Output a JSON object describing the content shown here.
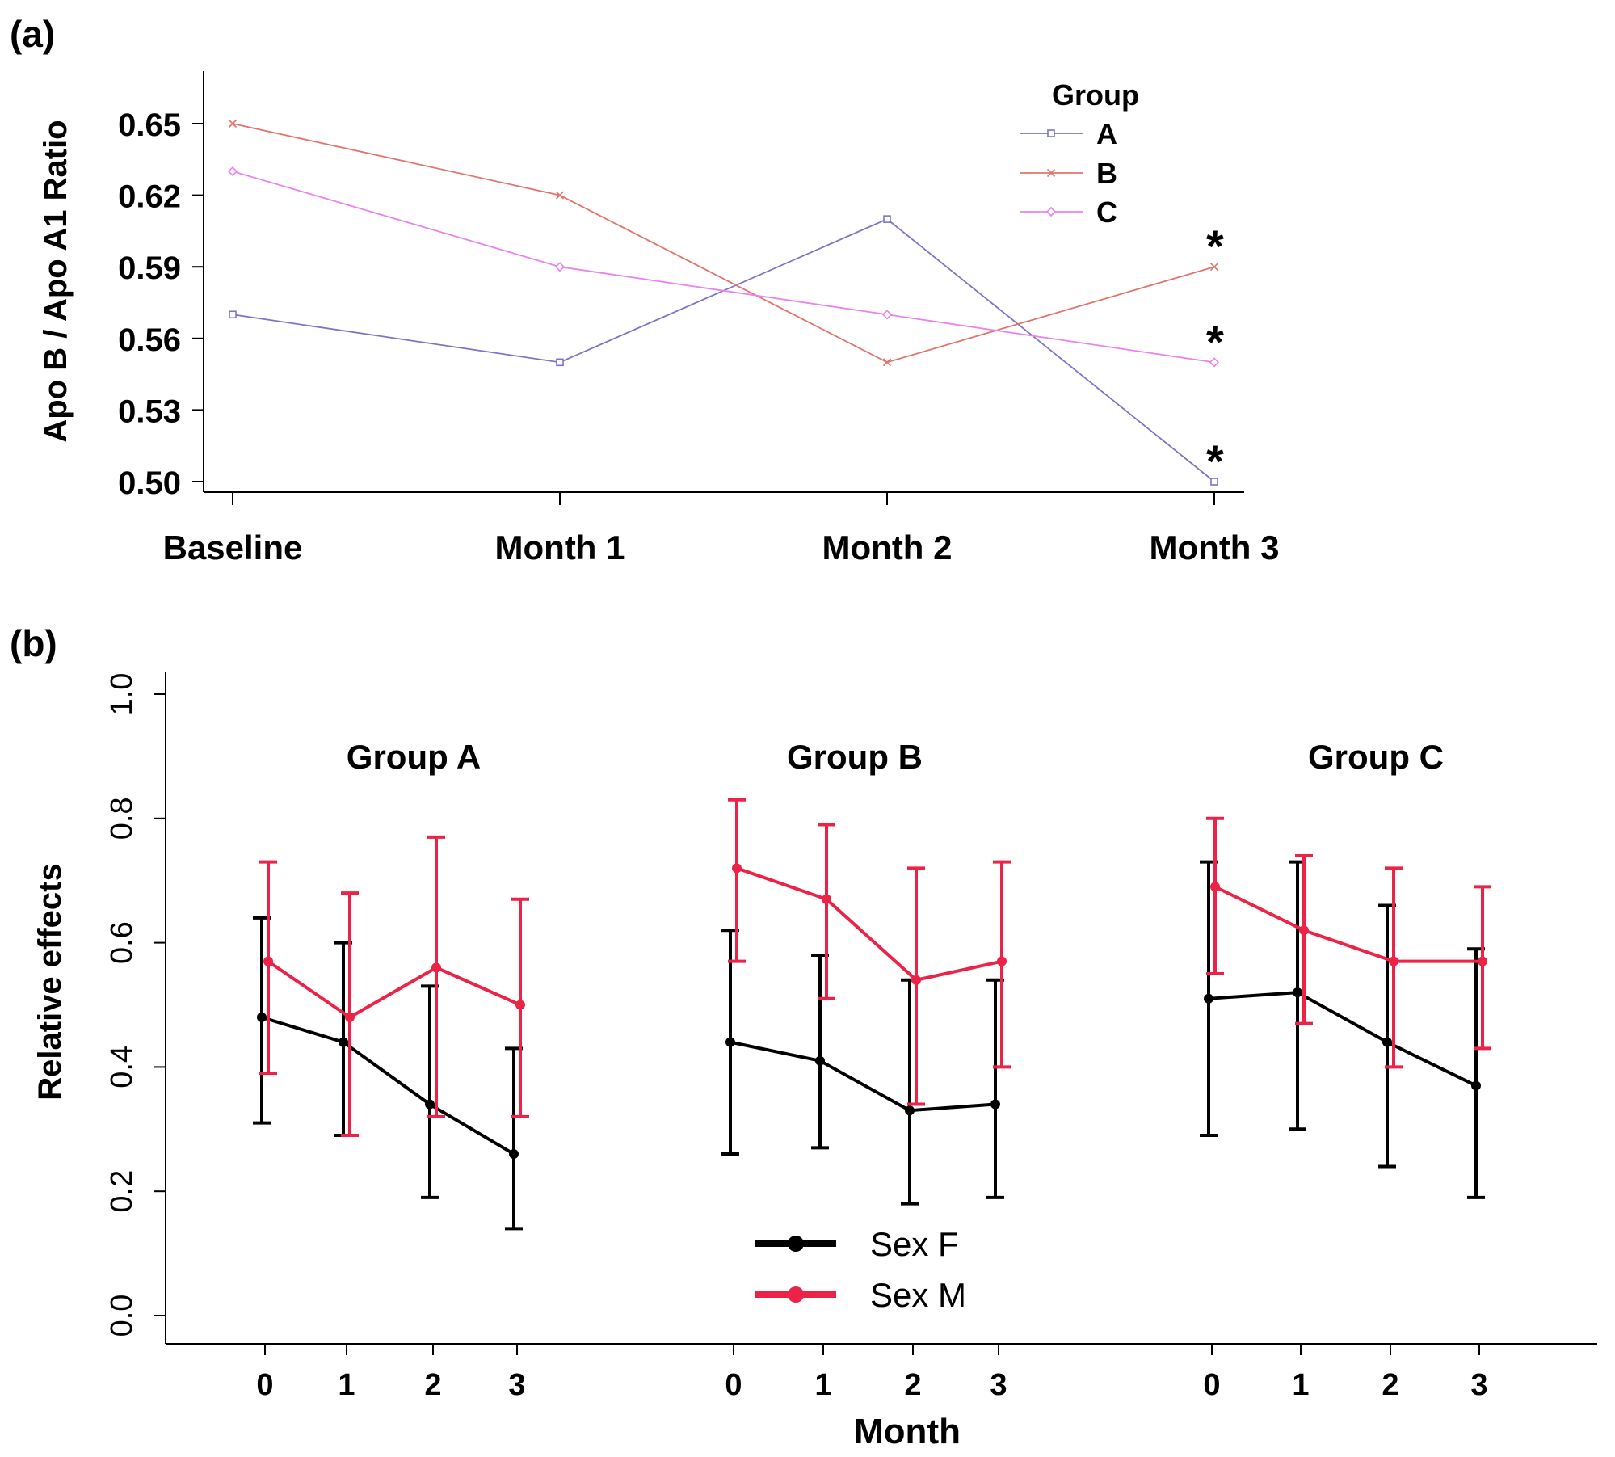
{
  "chart_data": [
    {
      "type": "line",
      "panel_label": "(a)",
      "categories": [
        "Baseline",
        "Month 1",
        "Month 2",
        "Month 3"
      ],
      "ylabel": "Apo B / Apo A1 Ratio",
      "ylim": [
        0.5,
        0.67
      ],
      "yticks": [
        "0.50",
        "0.53",
        "0.56",
        "0.59",
        "0.62",
        "0.65"
      ],
      "legend_title": "Group",
      "series": [
        {
          "name": "A",
          "values": [
            0.57,
            0.55,
            0.61,
            0.5
          ],
          "color": "#7b74c9",
          "marker": "square"
        },
        {
          "name": "B",
          "values": [
            0.65,
            0.62,
            0.55,
            0.59
          ],
          "color": "#e3736b",
          "marker": "x"
        },
        {
          "name": "C",
          "values": [
            0.63,
            0.59,
            0.57,
            0.55
          ],
          "color": "#e982ef",
          "marker": "diamond"
        }
      ],
      "annotations": [
        {
          "text": "*",
          "series": "B",
          "category": "Month 3"
        },
        {
          "text": "*",
          "series": "C",
          "category": "Month 3"
        },
        {
          "text": "*",
          "series": "A",
          "category": "Month 3"
        }
      ]
    },
    {
      "type": "line",
      "panel_label": "(b)",
      "xlabel": "Month",
      "ylabel": "Relative effects",
      "ylim": [
        0.0,
        1.0
      ],
      "yticks": [
        "0.0",
        "0.2",
        "0.4",
        "0.6",
        "0.8",
        "1.0"
      ],
      "x_tick_labels": [
        "0",
        "1",
        "2",
        "3"
      ],
      "legend": [
        "Sex F",
        "Sex M"
      ],
      "series_colors": {
        "Sex F": "#000000",
        "Sex M": "#ec2246"
      },
      "groups": [
        {
          "name": "Group A",
          "series": [
            {
              "name": "Sex F",
              "values": [
                0.48,
                0.44,
                0.34,
                0.26
              ],
              "lower": [
                0.31,
                0.29,
                0.19,
                0.14
              ],
              "upper": [
                0.64,
                0.6,
                0.53,
                0.43
              ]
            },
            {
              "name": "Sex M",
              "values": [
                0.57,
                0.48,
                0.56,
                0.5
              ],
              "lower": [
                0.39,
                0.29,
                0.32,
                0.32
              ],
              "upper": [
                0.73,
                0.68,
                0.77,
                0.67
              ]
            }
          ]
        },
        {
          "name": "Group B",
          "series": [
            {
              "name": "Sex F",
              "values": [
                0.44,
                0.41,
                0.33,
                0.34
              ],
              "lower": [
                0.26,
                0.27,
                0.18,
                0.19
              ],
              "upper": [
                0.62,
                0.58,
                0.54,
                0.54
              ]
            },
            {
              "name": "Sex M",
              "values": [
                0.72,
                0.67,
                0.54,
                0.57
              ],
              "lower": [
                0.57,
                0.51,
                0.34,
                0.4
              ],
              "upper": [
                0.83,
                0.79,
                0.72,
                0.73
              ]
            }
          ]
        },
        {
          "name": "Group C",
          "series": [
            {
              "name": "Sex F",
              "values": [
                0.51,
                0.52,
                0.44,
                0.37
              ],
              "lower": [
                0.29,
                0.3,
                0.24,
                0.19
              ],
              "upper": [
                0.73,
                0.73,
                0.66,
                0.59
              ]
            },
            {
              "name": "Sex M",
              "values": [
                0.69,
                0.62,
                0.57,
                0.57
              ],
              "lower": [
                0.55,
                0.47,
                0.4,
                0.43
              ],
              "upper": [
                0.8,
                0.74,
                0.72,
                0.69
              ]
            }
          ]
        }
      ]
    }
  ]
}
